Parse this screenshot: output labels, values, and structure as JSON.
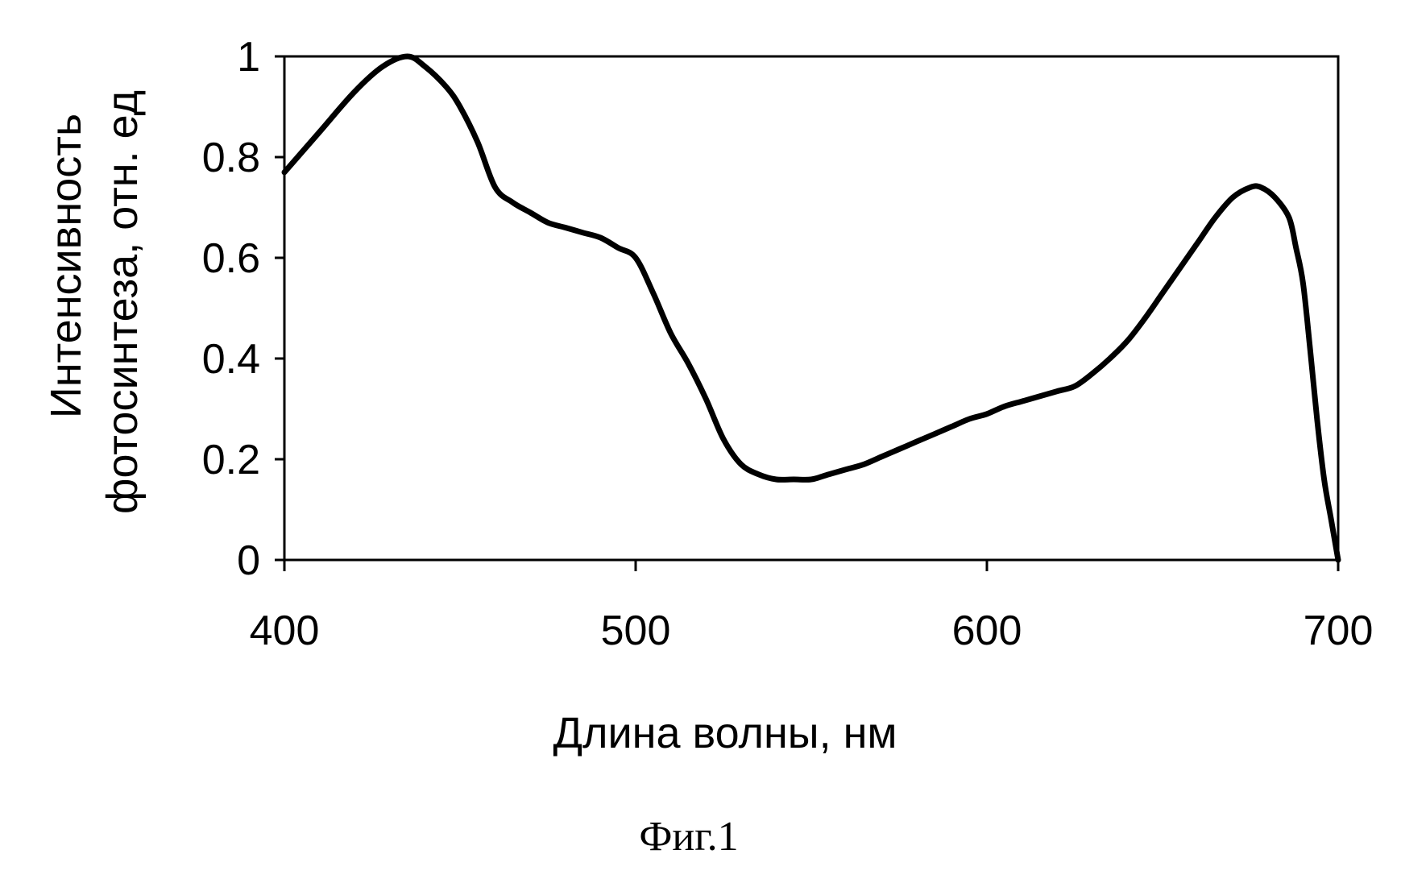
{
  "chart_data": {
    "type": "line",
    "title": "",
    "xlabel": "Длина волны, нм",
    "ylabel_line1": "Интенсивность",
    "ylabel_line2": "фотосинтеза, отн. ед",
    "xlim": [
      400,
      700
    ],
    "ylim": [
      0,
      1
    ],
    "xticks": [
      400,
      500,
      600,
      700
    ],
    "yticks": [
      0,
      0.2,
      0.4,
      0.6,
      0.8,
      1
    ],
    "ytick_labels": [
      "0",
      "0.2",
      "0.4",
      "0.6",
      "0.8",
      "1"
    ],
    "xtick_labels": [
      "400",
      "500",
      "600",
      "700"
    ],
    "grid": false,
    "legend": "none",
    "line_color": "#000000",
    "series": [
      {
        "x": [
          400,
          410,
          420,
          428,
          435,
          440,
          446,
          450,
          455,
          460,
          465,
          470,
          475,
          480,
          485,
          490,
          495,
          500,
          505,
          510,
          515,
          520,
          525,
          530,
          535,
          540,
          545,
          550,
          555,
          560,
          565,
          570,
          575,
          580,
          585,
          590,
          595,
          600,
          605,
          610,
          615,
          620,
          625,
          630,
          635,
          640,
          645,
          650,
          655,
          660,
          665,
          670,
          675,
          678,
          682,
          686,
          688,
          690,
          692,
          694,
          696,
          698,
          700
        ],
        "y": [
          0.77,
          0.85,
          0.93,
          0.98,
          1.0,
          0.98,
          0.94,
          0.9,
          0.83,
          0.74,
          0.71,
          0.69,
          0.67,
          0.66,
          0.65,
          0.64,
          0.62,
          0.6,
          0.53,
          0.45,
          0.39,
          0.32,
          0.24,
          0.19,
          0.17,
          0.16,
          0.16,
          0.16,
          0.17,
          0.18,
          0.19,
          0.205,
          0.22,
          0.235,
          0.25,
          0.265,
          0.28,
          0.29,
          0.305,
          0.315,
          0.325,
          0.335,
          0.345,
          0.37,
          0.4,
          0.435,
          0.48,
          0.53,
          0.58,
          0.63,
          0.68,
          0.72,
          0.74,
          0.74,
          0.72,
          0.68,
          0.62,
          0.55,
          0.42,
          0.28,
          0.16,
          0.08,
          0.0
        ]
      }
    ]
  },
  "caption": "Фиг.1"
}
